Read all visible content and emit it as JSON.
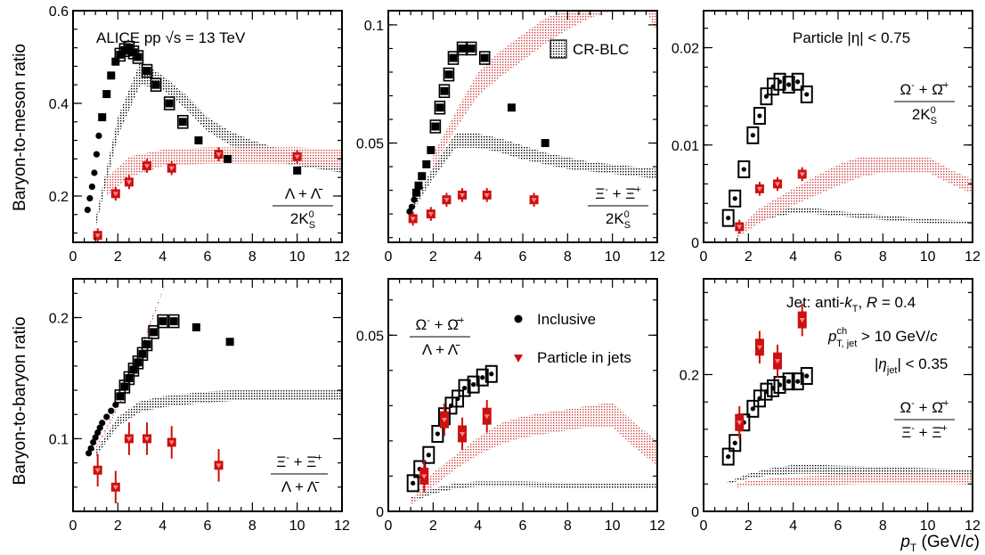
{
  "colors": {
    "inclusive": "#000000",
    "jets": "#cc1111",
    "band_incl": "#000000",
    "band_jet": "#d23a3a"
  },
  "labels": {
    "ylabel_top": "Baryon-to-meson ratio",
    "ylabel_bottom": "Baryon-to-baryon ratio",
    "xlabel": "p_T (GeV/c)",
    "alice": "ALICE pp √s = 13 TeV",
    "crblc": "CR-BLC",
    "eta": "Particle |η| < 0.75",
    "legend_incl": "Inclusive",
    "legend_jets": "Particle in jets",
    "jet_def": "Jet: anti-k_T, R = 0.4",
    "jet_pt": "p^ch_T, jet > 10 GeV/c",
    "jet_eta": "|η_jet| < 0.35"
  },
  "chart_data": [
    {
      "id": "p1",
      "type": "scatter",
      "title": "",
      "ratio_label": "(Λ + Λ̄) / 2K0S",
      "xlim": [
        0,
        12
      ],
      "ylim": [
        0.1,
        0.6
      ],
      "xticks": [
        "0",
        "2",
        "4",
        "6",
        "8",
        "10",
        "12"
      ],
      "yticks": [
        {
          "v": 0.2,
          "t": "0.2"
        },
        {
          "v": 0.4,
          "t": "0.4"
        },
        {
          "v": 0.6,
          "t": "0.6"
        }
      ],
      "inclusive": {
        "x": [
          0.65,
          0.75,
          0.85,
          0.95,
          1.05,
          1.15,
          1.3,
          1.5,
          1.7,
          1.9,
          2.1,
          2.3,
          2.5,
          2.7,
          2.9,
          3.3,
          3.7,
          4.3,
          4.9,
          5.6,
          6.9,
          10.0
        ],
        "y": [
          0.17,
          0.195,
          0.22,
          0.25,
          0.29,
          0.33,
          0.37,
          0.42,
          0.46,
          0.49,
          0.505,
          0.515,
          0.52,
          0.51,
          0.5,
          0.47,
          0.44,
          0.4,
          0.36,
          0.32,
          0.28,
          0.255
        ]
      },
      "jets": {
        "x": [
          1.1,
          1.9,
          2.5,
          3.3,
          4.4,
          6.5,
          10.0
        ],
        "y": [
          0.115,
          0.205,
          0.23,
          0.265,
          0.26,
          0.29,
          0.285
        ]
      },
      "band_incl": {
        "x": [
          1,
          2,
          3,
          4,
          5,
          6,
          7,
          8,
          9,
          10,
          11,
          12
        ],
        "lo": [
          0.13,
          0.33,
          0.44,
          0.43,
          0.39,
          0.34,
          0.31,
          0.29,
          0.275,
          0.265,
          0.258,
          0.25
        ],
        "hi": [
          0.15,
          0.37,
          0.49,
          0.46,
          0.42,
          0.37,
          0.34,
          0.32,
          0.305,
          0.29,
          0.28,
          0.27
        ]
      },
      "band_jet": {
        "x": [
          1.5,
          2.5,
          4,
          6,
          8,
          10,
          12
        ],
        "lo": [
          0.2,
          0.24,
          0.265,
          0.27,
          0.27,
          0.27,
          0.26
        ],
        "hi": [
          0.24,
          0.285,
          0.3,
          0.305,
          0.305,
          0.305,
          0.3
        ]
      }
    },
    {
      "id": "p2",
      "type": "scatter",
      "title": "",
      "ratio_label": "(Ξ- + Ξ̄+) / 2K0S",
      "xlim": [
        0,
        12
      ],
      "ylim": [
        0.008,
        0.106
      ],
      "xticks": [
        "0",
        "2",
        "4",
        "6",
        "8",
        "10",
        "12"
      ],
      "yticks": [
        {
          "v": 0.05,
          "t": "0.05"
        },
        {
          "v": 0.1,
          "t": "0.1"
        }
      ],
      "inclusive": {
        "x": [
          0.95,
          1.05,
          1.15,
          1.25,
          1.35,
          1.5,
          1.7,
          1.9,
          2.1,
          2.3,
          2.5,
          2.7,
          2.9,
          3.3,
          3.7,
          4.3,
          5.5,
          7.0
        ],
        "y": [
          0.021,
          0.023,
          0.026,
          0.029,
          0.032,
          0.036,
          0.041,
          0.047,
          0.057,
          0.065,
          0.072,
          0.079,
          0.086,
          0.09,
          0.09,
          0.086,
          0.065,
          0.05
        ]
      },
      "jets": {
        "x": [
          1.1,
          1.9,
          2.6,
          3.3,
          4.4,
          6.5
        ],
        "y": [
          0.018,
          0.02,
          0.026,
          0.028,
          0.028,
          0.026
        ]
      },
      "band_incl": {
        "x": [
          1,
          2,
          3,
          4,
          5,
          6,
          7,
          8,
          9,
          10,
          11,
          12
        ],
        "lo": [
          0.02,
          0.035,
          0.048,
          0.048,
          0.046,
          0.043,
          0.041,
          0.039,
          0.038,
          0.037,
          0.036,
          0.035
        ],
        "hi": [
          0.022,
          0.04,
          0.054,
          0.054,
          0.052,
          0.049,
          0.046,
          0.044,
          0.042,
          0.041,
          0.04,
          0.039
        ]
      },
      "band_jet": {
        "x": [
          2,
          3,
          4,
          5,
          6,
          7,
          8,
          9,
          10,
          11.5,
          12
        ],
        "lo": [
          0.04,
          0.056,
          0.07,
          0.078,
          0.085,
          0.092,
          0.098,
          0.103,
          0.106,
          0.106,
          0.097
        ],
        "hi": [
          0.045,
          0.063,
          0.08,
          0.089,
          0.096,
          0.103,
          0.106,
          0.106,
          0.106,
          0.106,
          0.106
        ]
      }
    },
    {
      "id": "p3",
      "type": "scatter",
      "title": "",
      "ratio_label": "(Ω- + Ω̄+) / 2K0S",
      "xlim": [
        0,
        12
      ],
      "ylim": [
        0,
        0.0238
      ],
      "xticks": [
        "0",
        "2",
        "4",
        "6",
        "8",
        "10",
        "12"
      ],
      "yticks": [
        {
          "v": 0,
          "t": "0"
        },
        {
          "v": 0.01,
          "t": "0.01"
        },
        {
          "v": 0.02,
          "t": "0.02"
        }
      ],
      "inclusive": {
        "x": [
          1.1,
          1.4,
          1.8,
          2.2,
          2.5,
          2.8,
          3.1,
          3.4,
          3.8,
          4.2,
          4.6
        ],
        "y": [
          0.0025,
          0.0045,
          0.0075,
          0.011,
          0.013,
          0.015,
          0.016,
          0.0165,
          0.0162,
          0.0165,
          0.0152
        ]
      },
      "jets": {
        "x": [
          1.6,
          2.5,
          3.3,
          4.4
        ],
        "y": [
          0.0016,
          0.0055,
          0.006,
          0.007
        ]
      },
      "band_incl": {
        "x": [
          1.5,
          2,
          3,
          4,
          5,
          6,
          7,
          8,
          9,
          10,
          11,
          12
        ],
        "lo": [
          0.0013,
          0.0018,
          0.0025,
          0.003,
          0.0029,
          0.0027,
          0.0025,
          0.0023,
          0.0021,
          0.002,
          0.0019,
          0.0018
        ],
        "hi": [
          0.0015,
          0.0022,
          0.0032,
          0.0036,
          0.0035,
          0.0032,
          0.003,
          0.0028,
          0.0026,
          0.0024,
          0.0023,
          0.0022
        ]
      },
      "band_jet": {
        "x": [
          1.5,
          2.5,
          4,
          5,
          6,
          7,
          8,
          9,
          10,
          11,
          12
        ],
        "lo": [
          0.0005,
          0.002,
          0.0038,
          0.0048,
          0.0058,
          0.0067,
          0.0072,
          0.0072,
          0.0072,
          0.006,
          0.005
        ],
        "hi": [
          0.0012,
          0.0035,
          0.0055,
          0.0068,
          0.008,
          0.0088,
          0.0088,
          0.0088,
          0.0088,
          0.0075,
          0.0065
        ]
      }
    },
    {
      "id": "p4",
      "type": "scatter",
      "title": "",
      "ratio_label": "(Ξ- + Ξ̄+) / (Λ + Λ̄)",
      "xlim": [
        0,
        12
      ],
      "ylim": [
        0.04,
        0.232
      ],
      "xticks": [
        "0",
        "2",
        "4",
        "6",
        "8",
        "10",
        "12"
      ],
      "yticks": [
        {
          "v": 0.1,
          "t": "0.1"
        },
        {
          "v": 0.2,
          "t": "0.2"
        }
      ],
      "inclusive": {
        "x": [
          0.7,
          0.8,
          0.9,
          1.0,
          1.1,
          1.2,
          1.3,
          1.5,
          1.7,
          1.9,
          2.1,
          2.3,
          2.5,
          2.7,
          2.9,
          3.1,
          3.3,
          3.6,
          4.0,
          4.5,
          5.5,
          7.0
        ],
        "y": [
          0.088,
          0.092,
          0.097,
          0.101,
          0.105,
          0.109,
          0.113,
          0.118,
          0.123,
          0.128,
          0.135,
          0.143,
          0.15,
          0.157,
          0.163,
          0.17,
          0.178,
          0.188,
          0.197,
          0.197,
          0.192,
          0.18
        ]
      },
      "jets": {
        "x": [
          1.1,
          1.9,
          2.5,
          3.3,
          4.4,
          6.5
        ],
        "y": [
          0.074,
          0.06,
          0.1,
          0.1,
          0.097,
          0.078
        ]
      },
      "band_incl": {
        "x": [
          1,
          2,
          3,
          4,
          5,
          6,
          7,
          8,
          9,
          10,
          11,
          12
        ],
        "lo": [
          0.085,
          0.11,
          0.122,
          0.126,
          0.128,
          0.13,
          0.131,
          0.132,
          0.132,
          0.132,
          0.132,
          0.132
        ],
        "hi": [
          0.09,
          0.118,
          0.131,
          0.135,
          0.137,
          0.139,
          0.14,
          0.14,
          0.14,
          0.14,
          0.14,
          0.14
        ]
      },
      "band_jet": {
        "x": [
          0.9,
          1.5,
          2,
          2.5,
          3,
          3.5,
          4.2
        ],
        "lo": [
          0.088,
          0.107,
          0.125,
          0.145,
          0.17,
          0.195,
          0.232
        ],
        "hi": [
          0.09,
          0.11,
          0.128,
          0.148,
          0.174,
          0.2,
          0.232
        ]
      }
    },
    {
      "id": "p5",
      "type": "scatter",
      "title": "",
      "ratio_label": "(Ω- + Ω̄+) / (Λ + Λ̄)",
      "xlim": [
        0,
        12
      ],
      "ylim": [
        0,
        0.066
      ],
      "xticks": [
        "0",
        "2",
        "4",
        "6",
        "8",
        "10",
        "12"
      ],
      "yticks": [
        {
          "v": 0,
          "t": "0"
        },
        {
          "v": 0.05,
          "t": "0.05"
        }
      ],
      "inclusive": {
        "x": [
          1.1,
          1.4,
          1.8,
          2.2,
          2.5,
          2.8,
          3.1,
          3.4,
          3.8,
          4.2,
          4.6
        ],
        "y": [
          0.008,
          0.012,
          0.016,
          0.022,
          0.027,
          0.03,
          0.032,
          0.035,
          0.036,
          0.038,
          0.039
        ]
      },
      "jets": {
        "x": [
          1.6,
          2.5,
          3.3,
          4.4
        ],
        "y": [
          0.01,
          0.026,
          0.022,
          0.027
        ]
      },
      "band_incl": {
        "x": [
          1,
          2,
          3,
          4,
          5,
          6,
          7,
          8,
          9,
          10,
          11,
          12
        ],
        "lo": [
          0.0025,
          0.005,
          0.0065,
          0.007,
          0.007,
          0.007,
          0.0068,
          0.0067,
          0.0066,
          0.0066,
          0.0066,
          0.0066
        ],
        "hi": [
          0.004,
          0.0065,
          0.008,
          0.0085,
          0.0085,
          0.0085,
          0.0083,
          0.0082,
          0.0081,
          0.0081,
          0.008,
          0.008
        ]
      },
      "band_jet": {
        "x": [
          1,
          2,
          3,
          4,
          5,
          6,
          7,
          8,
          9,
          10,
          11,
          12
        ],
        "lo": [
          0.002,
          0.007,
          0.012,
          0.016,
          0.019,
          0.021,
          0.022,
          0.023,
          0.024,
          0.024,
          0.018,
          0.013
        ],
        "hi": [
          0.003,
          0.011,
          0.016,
          0.021,
          0.025,
          0.027,
          0.028,
          0.029,
          0.03,
          0.031,
          0.025,
          0.02
        ]
      }
    },
    {
      "id": "p6",
      "type": "scatter",
      "title": "",
      "ratio_label": "(Ω- + Ω̄+) / (Ξ- + Ξ̄+)",
      "xlim": [
        0,
        12
      ],
      "ylim": [
        0,
        0.34
      ],
      "xticks": [
        "0",
        "2",
        "4",
        "6",
        "8",
        "10",
        "12"
      ],
      "yticks": [
        {
          "v": 0,
          "t": "0"
        },
        {
          "v": 0.2,
          "t": "0.2"
        }
      ],
      "inclusive": {
        "x": [
          1.1,
          1.4,
          1.8,
          2.2,
          2.5,
          2.8,
          3.1,
          3.4,
          3.8,
          4.2,
          4.6
        ],
        "y": [
          0.08,
          0.1,
          0.13,
          0.15,
          0.165,
          0.175,
          0.18,
          0.185,
          0.19,
          0.19,
          0.198
        ]
      },
      "jets": {
        "x": [
          1.6,
          2.5,
          3.3,
          4.4
        ],
        "y": [
          0.13,
          0.24,
          0.22,
          0.28
        ]
      },
      "band_incl": {
        "x": [
          1,
          2,
          3,
          4,
          5,
          6,
          7,
          8,
          9,
          10,
          11,
          12
        ],
        "lo": [
          0.04,
          0.048,
          0.053,
          0.055,
          0.055,
          0.054,
          0.053,
          0.052,
          0.051,
          0.05,
          0.049,
          0.048
        ],
        "hi": [
          0.042,
          0.055,
          0.063,
          0.068,
          0.068,
          0.067,
          0.066,
          0.065,
          0.064,
          0.063,
          0.062,
          0.061
        ]
      },
      "band_jet": {
        "x": [
          1.5,
          2,
          3,
          4,
          5,
          6,
          7,
          8,
          9,
          10,
          11,
          12
        ],
        "lo": [
          0.035,
          0.038,
          0.039,
          0.038,
          0.038,
          0.039,
          0.04,
          0.04,
          0.04,
          0.04,
          0.04,
          0.039
        ],
        "hi": [
          0.04,
          0.045,
          0.048,
          0.05,
          0.052,
          0.054,
          0.055,
          0.055,
          0.055,
          0.055,
          0.055,
          0.054
        ]
      }
    }
  ]
}
